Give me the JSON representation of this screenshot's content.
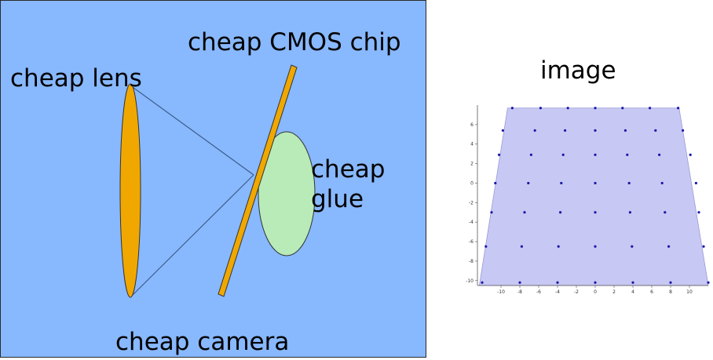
{
  "camera_diagram": {
    "chip_label": "cheap CMOS chip",
    "lens_label": "cheap lens",
    "glue_label": "cheap glue",
    "caption": "cheap camera",
    "colors": {
      "background": "#88b8fd",
      "lens": "#f0a800",
      "chip": "#f0a800",
      "glue": "#b8ebb8",
      "rays": "#3b5d8c"
    }
  },
  "image_panel": {
    "title": "image",
    "x_ticks": [
      "-10",
      "-8",
      "-6",
      "-4",
      "-2",
      "0",
      "2",
      "4",
      "6",
      "8",
      "10"
    ],
    "y_ticks": [
      "6",
      "4",
      "2",
      "0",
      "-2",
      "-4",
      "-6",
      "-8",
      "-10"
    ],
    "colors": {
      "fill": "#c8c8f4",
      "dot": "#1a1aa8"
    }
  },
  "chart_data": {
    "type": "scatter",
    "title": "image",
    "xlim": [
      -12.5,
      12
    ],
    "ylim": [
      -10.5,
      8
    ],
    "grid": false,
    "polygon": [
      [
        -9.3,
        7.7
      ],
      [
        8.9,
        7.7
      ],
      [
        12,
        -10.5
      ],
      [
        -12.3,
        -10.5
      ]
    ],
    "rows": [
      {
        "y": 7.7,
        "x": [
          -8.8,
          -5.8,
          -2.9,
          0,
          2.9,
          5.8,
          8.8
        ]
      },
      {
        "y": 5.4,
        "x": [
          -9.8,
          -6.4,
          -3.2,
          0,
          3.2,
          6.4,
          9.3
        ]
      },
      {
        "y": 2.9,
        "x": [
          -10.2,
          -6.8,
          -3.4,
          0,
          3.4,
          6.8,
          10.1
        ]
      },
      {
        "y": 0,
        "x": [
          -10.6,
          -7.1,
          -3.6,
          0,
          3.6,
          7.1,
          10.7
        ]
      },
      {
        "y": -3,
        "x": [
          -11,
          -7.5,
          -3.7,
          0,
          3.7,
          7.4,
          11
        ]
      },
      {
        "y": -6.5,
        "x": [
          -11.6,
          -7.8,
          -3.9,
          0,
          3.9,
          7.8,
          11.5
        ]
      },
      {
        "y": -10.2,
        "x": [
          -12,
          -8,
          -4,
          0,
          4,
          8,
          12
        ]
      }
    ]
  }
}
